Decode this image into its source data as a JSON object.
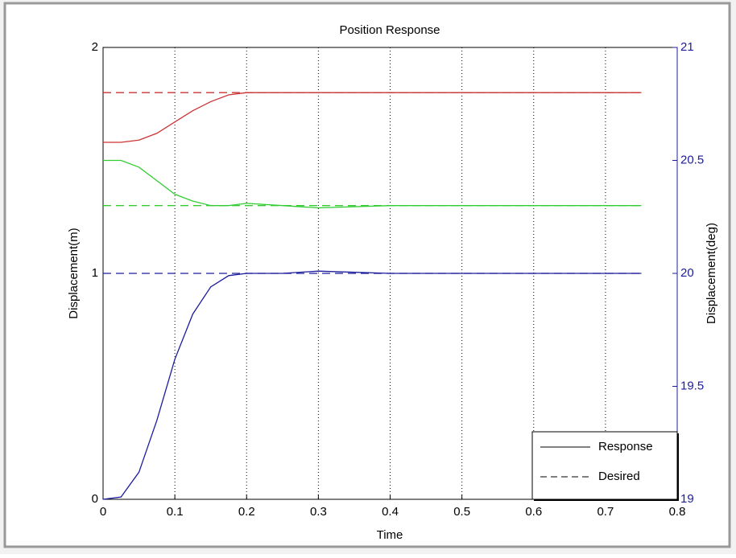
{
  "chart_data": {
    "type": "line",
    "title": "Position Response",
    "xlabel": "Time",
    "ylabel": "Displacement(m)",
    "y2label": "Displacement(deg)",
    "xlim": [
      0,
      0.8
    ],
    "xticks": [
      0,
      0.1,
      0.2,
      0.3,
      0.4,
      0.5,
      0.6,
      0.7,
      0.8
    ],
    "ylim": [
      0,
      2
    ],
    "yticks": [
      0,
      1,
      2
    ],
    "y2lim": [
      19,
      21
    ],
    "y2ticks": [
      19,
      19.5,
      20,
      20.5,
      21
    ],
    "y2color": "#1c1c9c",
    "grid": "x",
    "series": [
      {
        "color": "#cc3333",
        "style": "solid",
        "x": [
          0,
          0.025,
          0.05,
          0.075,
          0.1,
          0.125,
          0.15,
          0.175,
          0.2,
          0.25,
          0.3,
          0.4,
          0.5,
          0.6,
          0.7,
          0.75
        ],
        "values": [
          1.58,
          1.58,
          1.59,
          1.62,
          1.67,
          1.72,
          1.76,
          1.79,
          1.8,
          1.8,
          1.8,
          1.8,
          1.8,
          1.8,
          1.8,
          1.8
        ]
      },
      {
        "color": "#33cc33",
        "style": "solid",
        "x": [
          0,
          0.025,
          0.05,
          0.075,
          0.1,
          0.125,
          0.15,
          0.175,
          0.2,
          0.25,
          0.3,
          0.4,
          0.5,
          0.6,
          0.7,
          0.75
        ],
        "values": [
          1.5,
          1.5,
          1.47,
          1.41,
          1.35,
          1.32,
          1.3,
          1.3,
          1.31,
          1.3,
          1.29,
          1.3,
          1.3,
          1.3,
          1.3,
          1.3
        ]
      },
      {
        "color": "#1c1c9c",
        "style": "solid",
        "axis": "y2",
        "x": [
          0,
          0.025,
          0.05,
          0.075,
          0.1,
          0.125,
          0.15,
          0.175,
          0.2,
          0.25,
          0.3,
          0.4,
          0.5,
          0.6,
          0.7,
          0.75
        ],
        "values": [
          19,
          19.01,
          19.12,
          19.35,
          19.62,
          19.82,
          19.94,
          19.99,
          20,
          20,
          20.01,
          20,
          20,
          20,
          20,
          20
        ]
      },
      {
        "color": "#cc3333",
        "style": "dashed",
        "x": [
          0,
          0.75
        ],
        "values": [
          1.8,
          1.8
        ]
      },
      {
        "color": "#33cc33",
        "style": "dashed",
        "x": [
          0,
          0.75
        ],
        "values": [
          1.3,
          1.3
        ]
      },
      {
        "color": "#1c1c9c",
        "style": "dashed",
        "axis": "y2",
        "x": [
          0,
          0.75
        ],
        "values": [
          20,
          20
        ]
      }
    ],
    "legend": {
      "position": "lower right",
      "entries": [
        {
          "label": "Response",
          "style": "solid"
        },
        {
          "label": "Desired",
          "style": "dashed"
        }
      ]
    }
  }
}
